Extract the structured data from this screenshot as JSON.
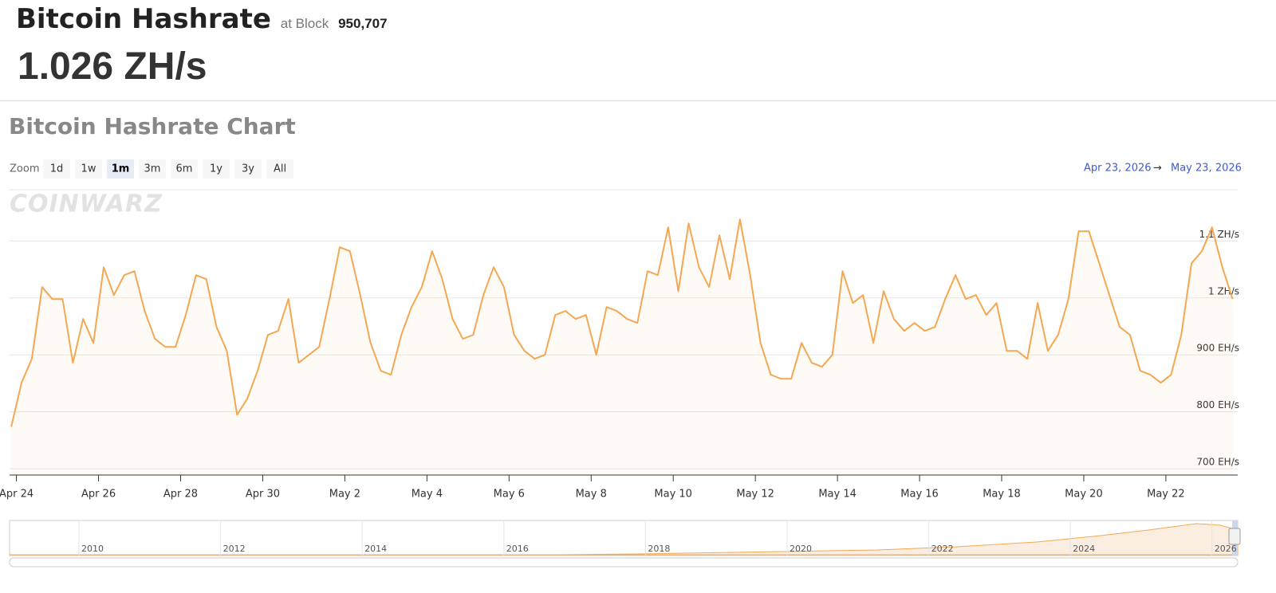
{
  "header": {
    "title": "Bitcoin Hashrate",
    "at_block_label": "at Block",
    "block": "950,707",
    "hashrate": "1.026 ZH/s"
  },
  "watermark": "COINWARZ",
  "zoom": {
    "label": "Zoom",
    "buttons": [
      "1d",
      "1w",
      "1m",
      "3m",
      "6m",
      "1y",
      "3y",
      "All"
    ],
    "selected": "1m"
  },
  "range": {
    "from": "Apr 23, 2026",
    "arrow": "→",
    "to": "May 23, 2026"
  },
  "chart_data": {
    "type": "area",
    "title": "Bitcoin Hashrate Chart",
    "x": [
      "2026-04-23T21:00",
      "2026-04-24T03:00",
      "2026-04-24T09:00",
      "2026-04-24T15:00",
      "2026-04-24T21:00",
      "2026-04-25T03:00",
      "2026-04-25T09:00",
      "2026-04-25T15:00",
      "2026-04-25T21:00",
      "2026-04-26T03:00",
      "2026-04-26T09:00",
      "2026-04-26T15:00",
      "2026-04-26T21:00",
      "2026-04-27T03:00",
      "2026-04-27T09:00",
      "2026-04-27T15:00",
      "2026-04-27T21:00",
      "2026-04-28T03:00",
      "2026-04-28T09:00",
      "2026-04-28T15:00",
      "2026-04-28T21:00",
      "2026-04-29T03:00",
      "2026-04-29T09:00",
      "2026-04-29T15:00",
      "2026-04-29T21:00",
      "2026-04-30T03:00",
      "2026-04-30T09:00",
      "2026-04-30T15:00",
      "2026-04-30T21:00",
      "2026-05-01T03:00",
      "2026-05-01T09:00",
      "2026-05-01T15:00",
      "2026-05-01T21:00",
      "2026-05-02T03:00",
      "2026-05-02T09:00",
      "2026-05-02T15:00",
      "2026-05-02T21:00",
      "2026-05-03T03:00",
      "2026-05-03T09:00",
      "2026-05-03T15:00",
      "2026-05-03T21:00",
      "2026-05-04T03:00",
      "2026-05-04T09:00",
      "2026-05-04T15:00",
      "2026-05-04T21:00",
      "2026-05-05T03:00",
      "2026-05-05T09:00",
      "2026-05-05T15:00",
      "2026-05-05T21:00",
      "2026-05-06T03:00",
      "2026-05-06T09:00",
      "2026-05-06T15:00",
      "2026-05-06T21:00",
      "2026-05-07T03:00",
      "2026-05-07T09:00",
      "2026-05-07T15:00",
      "2026-05-07T21:00",
      "2026-05-08T03:00",
      "2026-05-08T09:00",
      "2026-05-08T15:00",
      "2026-05-08T21:00",
      "2026-05-09T03:00",
      "2026-05-09T09:00",
      "2026-05-09T15:00",
      "2026-05-09T21:00",
      "2026-05-10T03:00",
      "2026-05-10T09:00",
      "2026-05-10T15:00",
      "2026-05-10T21:00",
      "2026-05-11T03:00",
      "2026-05-11T09:00",
      "2026-05-11T15:00",
      "2026-05-11T21:00",
      "2026-05-12T03:00",
      "2026-05-12T09:00",
      "2026-05-12T15:00",
      "2026-05-12T21:00",
      "2026-05-13T03:00",
      "2026-05-13T09:00",
      "2026-05-13T15:00",
      "2026-05-13T21:00",
      "2026-05-14T03:00",
      "2026-05-14T09:00",
      "2026-05-14T15:00",
      "2026-05-14T21:00",
      "2026-05-15T03:00",
      "2026-05-15T09:00",
      "2026-05-15T15:00",
      "2026-05-15T21:00",
      "2026-05-16T03:00",
      "2026-05-16T09:00",
      "2026-05-16T15:00",
      "2026-05-16T21:00",
      "2026-05-17T03:00",
      "2026-05-17T09:00",
      "2026-05-17T15:00",
      "2026-05-17T21:00",
      "2026-05-18T03:00",
      "2026-05-18T09:00",
      "2026-05-18T15:00",
      "2026-05-18T21:00",
      "2026-05-19T03:00",
      "2026-05-19T09:00",
      "2026-05-19T15:00",
      "2026-05-19T21:00",
      "2026-05-20T03:00",
      "2026-05-20T09:00",
      "2026-05-20T15:00",
      "2026-05-20T21:00",
      "2026-05-21T03:00",
      "2026-05-21T09:00",
      "2026-05-21T15:00",
      "2026-05-21T21:00",
      "2026-05-22T03:00",
      "2026-05-22T09:00",
      "2026-05-22T15:00",
      "2026-05-22T21:00",
      "2026-05-23T03:00",
      "2026-05-23T09:00",
      "2026-05-23T15:00"
    ],
    "series": [
      {
        "color": "#f4a853",
        "values": [
          774,
          851,
          893,
          1019,
          998,
          998,
          886,
          963,
          921,
          1054,
          1005,
          1040,
          1047,
          977,
          928,
          914,
          914,
          970,
          1040,
          1033,
          949,
          907,
          795,
          823,
          872,
          935,
          942,
          998,
          886,
          900,
          914,
          998,
          1089,
          1082,
          1005,
          921,
          872,
          865,
          935,
          984,
          1019,
          1082,
          1033,
          963,
          928,
          935,
          1005,
          1054,
          1019,
          935,
          907,
          893,
          900,
          970,
          977,
          963,
          970,
          900,
          984,
          977,
          963,
          956,
          1047,
          1040,
          1124,
          1012,
          1131,
          1054,
          1019,
          1110,
          1033,
          1138,
          1040,
          921,
          865,
          858,
          858,
          921,
          886,
          879,
          900,
          1047,
          991,
          1005,
          921,
          1012,
          963,
          942,
          956,
          942,
          949,
          998,
          1040,
          998,
          1005,
          970,
          991,
          907,
          907,
          893,
          991,
          907,
          935,
          998,
          1117,
          1117,
          1061,
          1005,
          949,
          935,
          872,
          865,
          851,
          865,
          935,
          1061,
          1082,
          1124,
          1054,
          998
        ]
      }
    ],
    "xlim": [
      "2026-04-23T20:00",
      "2026-05-23T18:00"
    ],
    "xticks": [
      {
        "value": "2026-04-24",
        "label": "Apr 24"
      },
      {
        "value": "2026-04-26",
        "label": "Apr 26"
      },
      {
        "value": "2026-04-28",
        "label": "Apr 28"
      },
      {
        "value": "2026-04-30",
        "label": "Apr 30"
      },
      {
        "value": "2026-05-02",
        "label": "May 2"
      },
      {
        "value": "2026-05-04",
        "label": "May 4"
      },
      {
        "value": "2026-05-06",
        "label": "May 6"
      },
      {
        "value": "2026-05-08",
        "label": "May 8"
      },
      {
        "value": "2026-05-10",
        "label": "May 10"
      },
      {
        "value": "2026-05-12",
        "label": "May 12"
      },
      {
        "value": "2026-05-14",
        "label": "May 14"
      },
      {
        "value": "2026-05-16",
        "label": "May 16"
      },
      {
        "value": "2026-05-18",
        "label": "May 18"
      },
      {
        "value": "2026-05-20",
        "label": "May 20"
      },
      {
        "value": "2026-05-22",
        "label": "May 22"
      }
    ],
    "ylim": [
      689,
      1190
    ],
    "yticks": [
      {
        "value": 700,
        "label": "700 EH/s"
      },
      {
        "value": 800,
        "label": "800 EH/s"
      },
      {
        "value": 900,
        "label": "900 EH/s"
      },
      {
        "value": 1000,
        "label": "1 ZH/s"
      },
      {
        "value": 1100,
        "label": "1.1 ZH/s"
      }
    ],
    "grid": true,
    "navigator_ticks": [
      "2010",
      "2012",
      "2014",
      "2016",
      "2018",
      "2020",
      "2022",
      "2024",
      "2026"
    ]
  }
}
